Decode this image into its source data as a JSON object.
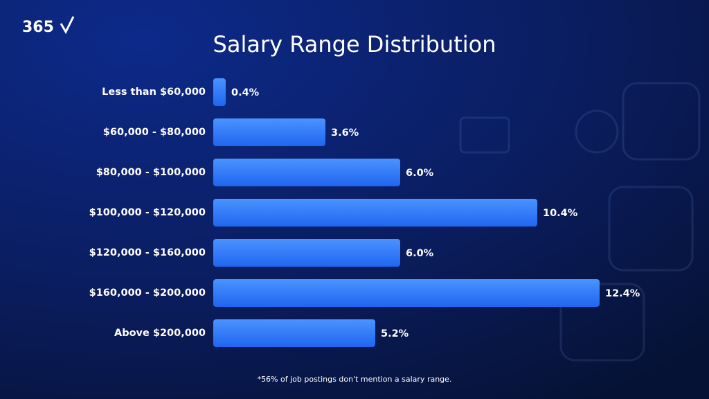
{
  "logo": "365",
  "chart_data": {
    "type": "bar",
    "orientation": "horizontal",
    "title": "Salary Range Distribution",
    "categories": [
      "Less than $60,000",
      "$60,000 - $80,000",
      "$80,000 - $100,000",
      "$100,000 - $120,000",
      "$120,000 - $160,000",
      "$160,000 - $200,000",
      "Above $200,000"
    ],
    "values": [
      0.4,
      3.6,
      6.0,
      10.4,
      6.0,
      12.4,
      5.2
    ],
    "value_labels": [
      "0.4%",
      "3.6%",
      "6.0%",
      "10.4%",
      "6.0%",
      "12.4%",
      "5.2%"
    ],
    "color": "#2f7cff",
    "annotation": "*56% of job postings don't mention a salary range."
  }
}
